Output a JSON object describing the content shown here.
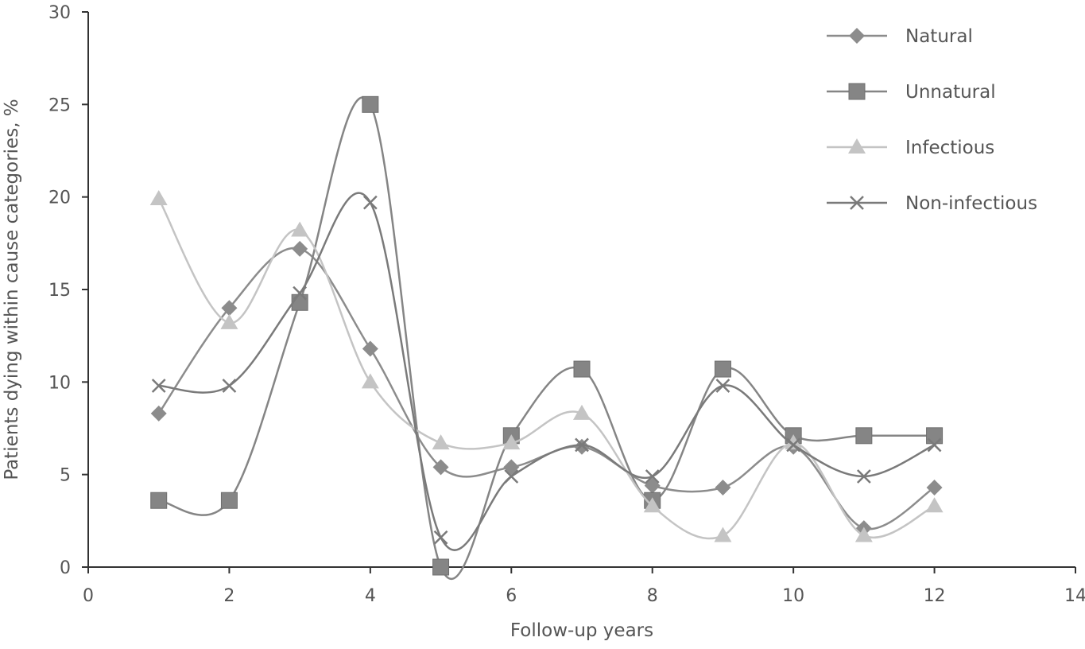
{
  "chart_data": {
    "type": "line",
    "title": "",
    "xlabel": "Follow-up years",
    "ylabel": "Patients dying within cause categories, %",
    "xlim": [
      0,
      14
    ],
    "ylim": [
      0,
      30
    ],
    "xticks": [
      0,
      2,
      4,
      6,
      8,
      10,
      12,
      14
    ],
    "yticks": [
      0,
      5,
      10,
      15,
      20,
      25,
      30
    ],
    "grid": false,
    "legend_position": "top-right",
    "x": [
      1,
      2,
      3,
      4,
      5,
      6,
      7,
      8,
      9,
      10,
      11,
      12
    ],
    "series": [
      {
        "name": "Natural",
        "marker": "diamond",
        "color": "#8c8c8c",
        "values": [
          8.3,
          14.0,
          17.2,
          11.8,
          5.4,
          5.4,
          6.5,
          4.4,
          4.3,
          6.5,
          2.1,
          4.3
        ]
      },
      {
        "name": "Unnatural",
        "marker": "square",
        "color": "#858585",
        "values": [
          3.6,
          3.6,
          14.3,
          25.0,
          0.0,
          7.1,
          10.7,
          3.6,
          10.7,
          7.1,
          7.1,
          7.1
        ]
      },
      {
        "name": "Infectious",
        "marker": "triangle",
        "color": "#c4c4c4",
        "values": [
          19.9,
          13.2,
          18.2,
          10.0,
          6.7,
          6.7,
          8.3,
          3.3,
          1.7,
          6.7,
          1.7,
          3.3
        ]
      },
      {
        "name": "Non-infectious",
        "marker": "x",
        "color": "#7a7a7a",
        "values": [
          9.8,
          9.8,
          14.8,
          19.7,
          1.6,
          4.9,
          6.6,
          4.9,
          9.8,
          6.6,
          4.9,
          6.6
        ]
      }
    ]
  }
}
